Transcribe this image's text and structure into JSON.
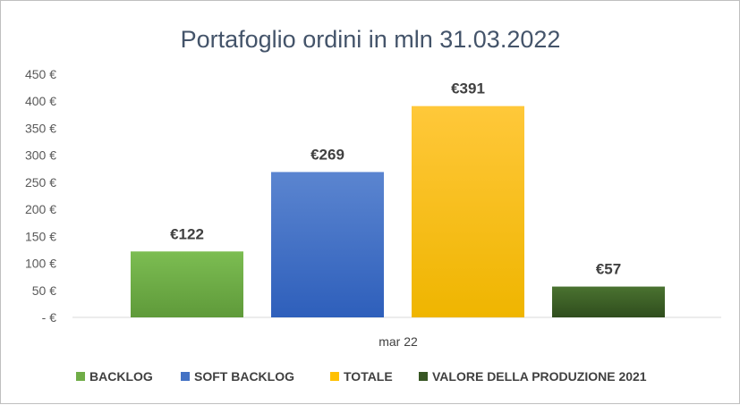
{
  "chart_data": {
    "type": "bar",
    "title": "Portafoglio ordini in mln 31.03.2022",
    "categories": [
      "mar 22"
    ],
    "ylim": [
      0,
      450
    ],
    "yticks": [
      0,
      50,
      100,
      150,
      200,
      250,
      300,
      350,
      400,
      450
    ],
    "ytick_labels": [
      "- €",
      "50 €",
      "100 €",
      "150 €",
      "200 €",
      "250 €",
      "300 €",
      "350 €",
      "400 €",
      "450 €"
    ],
    "grid": false,
    "legend_position": "bottom",
    "series": [
      {
        "name": "BACKLOG",
        "values": [
          122
        ],
        "label": "€122",
        "color": "#70ad47",
        "color_top": "#7cbd52",
        "color_bottom": "#5f9a3a"
      },
      {
        "name": "SOFT BACKLOG",
        "values": [
          269
        ],
        "label": "€269",
        "color": "#4472c4",
        "color_top": "#5b85d0",
        "color_bottom": "#2e5fbb"
      },
      {
        "name": "TOTALE",
        "values": [
          391
        ],
        "label": "€391",
        "color": "#ffc000",
        "color_top": "#ffc83a",
        "color_bottom": "#efb500"
      },
      {
        "name": "VALORE DELLA PRODUZIONE 2021",
        "values": [
          57
        ],
        "label": "€57",
        "color": "#375623",
        "color_top": "#4a7230",
        "color_bottom": "#2f4d1d"
      }
    ]
  }
}
